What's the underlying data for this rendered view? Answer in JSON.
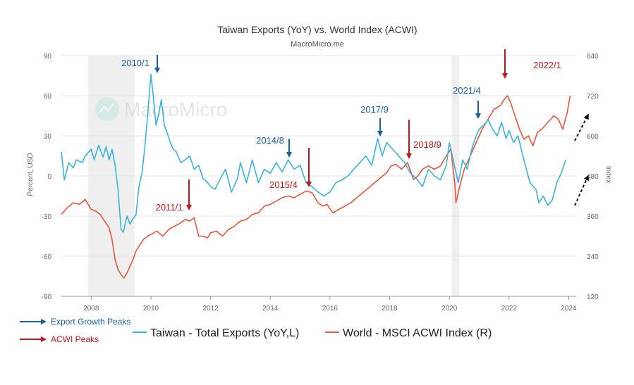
{
  "chart_data": {
    "type": "line",
    "title": "Taiwan Exports (YoY) vs. World Index (ACWI)",
    "subtitle": "MacroMicro.me",
    "watermark": "MacroMicro",
    "ylabel_left": "Percent, USD",
    "ylabel_right": "Index",
    "xlim": [
      2007.0,
      2024.25
    ],
    "ylim_left": [
      -90,
      90
    ],
    "ylim_right": [
      120,
      840
    ],
    "x_ticks": [
      "2008",
      "2010",
      "2012",
      "2014",
      "2016",
      "2018",
      "2020",
      "2022",
      "2024"
    ],
    "y_ticks_left": [
      "90",
      "60",
      "30",
      "0",
      "-30",
      "-60",
      "-90"
    ],
    "y_ticks_right": [
      "840",
      "720",
      "600",
      "480",
      "360",
      "240",
      "120"
    ],
    "grid": "horizontal",
    "recession_bands": [
      [
        2007.9,
        2009.45
      ],
      [
        2020.08,
        2020.33
      ]
    ],
    "legend": {
      "placement": "bottom",
      "items": [
        {
          "label": "Taiwan - Total Exports (YoY,L)",
          "color": "#3bb3d9"
        },
        {
          "label": "World - MSCI ACWI Index (R)",
          "color": "#e8553f"
        }
      ]
    },
    "annotation_legend": [
      {
        "label": "Export Growth Peaks",
        "color": "#1a5f9e"
      },
      {
        "label": "ACWI Peaks",
        "color": "#c0171d"
      }
    ],
    "series": [
      {
        "name": "Taiwan - Total Exports (YoY,L)",
        "axis": "left",
        "color": "#3bb3d9",
        "x": [
          2007.0,
          2007.1,
          2007.25,
          2007.4,
          2007.5,
          2007.7,
          2007.8,
          2008.0,
          2008.1,
          2008.25,
          2008.4,
          2008.5,
          2008.6,
          2008.7,
          2008.8,
          2008.9,
          2009.0,
          2009.08,
          2009.2,
          2009.3,
          2009.4,
          2009.5,
          2009.6,
          2009.7,
          2009.8,
          2009.9,
          2010.0,
          2010.08,
          2010.17,
          2010.25,
          2010.35,
          2010.45,
          2010.55,
          2010.65,
          2010.75,
          2010.85,
          2011.0,
          2011.15,
          2011.3,
          2011.45,
          2011.6,
          2011.75,
          2011.9,
          2012.0,
          2012.15,
          2012.3,
          2012.5,
          2012.7,
          2012.9,
          2013.0,
          2013.2,
          2013.4,
          2013.6,
          2013.8,
          2014.0,
          2014.2,
          2014.4,
          2014.6,
          2014.8,
          2015.0,
          2015.2,
          2015.4,
          2015.6,
          2015.8,
          2016.0,
          2016.2,
          2016.4,
          2016.6,
          2016.8,
          2017.0,
          2017.2,
          2017.4,
          2017.6,
          2017.75,
          2017.9,
          2018.1,
          2018.3,
          2018.5,
          2018.7,
          2018.9,
          2019.1,
          2019.3,
          2019.5,
          2019.7,
          2019.9,
          2020.0,
          2020.15,
          2020.3,
          2020.45,
          2020.6,
          2020.75,
          2020.9,
          2021.0,
          2021.15,
          2021.3,
          2021.45,
          2021.6,
          2021.75,
          2021.9,
          2022.0,
          2022.15,
          2022.3,
          2022.5,
          2022.7,
          2022.9,
          2023.0,
          2023.15,
          2023.3,
          2023.45,
          2023.6,
          2023.75,
          2023.9
        ],
        "y": [
          18,
          -3,
          10,
          6,
          12,
          10,
          15,
          20,
          12,
          23,
          14,
          22,
          12,
          20,
          8,
          -10,
          -40,
          -42,
          -30,
          -36,
          -32,
          -29,
          -8,
          2,
          22,
          48,
          76,
          60,
          38,
          45,
          57,
          38,
          32,
          25,
          20,
          18,
          10,
          12,
          15,
          5,
          8,
          -2,
          -5,
          -8,
          -10,
          -3,
          5,
          -12,
          -2,
          10,
          -5,
          12,
          -5,
          5,
          2,
          10,
          3,
          12,
          5,
          8,
          -5,
          -8,
          -12,
          -15,
          -12,
          -5,
          -3,
          0,
          5,
          10,
          15,
          8,
          28,
          15,
          25,
          20,
          15,
          10,
          2,
          -2,
          -8,
          5,
          0,
          -3,
          8,
          25,
          10,
          -5,
          12,
          5,
          20,
          30,
          35,
          38,
          42,
          35,
          30,
          40,
          28,
          34,
          25,
          30,
          12,
          -5,
          -10,
          -20,
          -15,
          -22,
          -18,
          -5,
          2,
          12
        ]
      },
      {
        "name": "World - MSCI ACWI Index (R)",
        "axis": "right",
        "color": "#e8553f",
        "x": [
          2007.0,
          2007.2,
          2007.4,
          2007.6,
          2007.8,
          2008.0,
          2008.15,
          2008.3,
          2008.45,
          2008.6,
          2008.7,
          2008.8,
          2008.9,
          2009.0,
          2009.1,
          2009.2,
          2009.3,
          2009.4,
          2009.5,
          2009.6,
          2009.75,
          2009.9,
          2010.0,
          2010.2,
          2010.4,
          2010.6,
          2010.8,
          2011.0,
          2011.15,
          2011.3,
          2011.45,
          2011.6,
          2011.75,
          2011.9,
          2012.0,
          2012.2,
          2012.4,
          2012.6,
          2012.8,
          2013.0,
          2013.2,
          2013.4,
          2013.6,
          2013.8,
          2014.0,
          2014.2,
          2014.4,
          2014.6,
          2014.8,
          2015.0,
          2015.2,
          2015.4,
          2015.6,
          2015.75,
          2015.9,
          2016.1,
          2016.3,
          2016.5,
          2016.7,
          2016.9,
          2017.1,
          2017.3,
          2017.5,
          2017.7,
          2017.9,
          2018.05,
          2018.2,
          2018.4,
          2018.6,
          2018.8,
          2018.95,
          2019.1,
          2019.3,
          2019.5,
          2019.7,
          2019.9,
          2020.05,
          2020.18,
          2020.22,
          2020.35,
          2020.5,
          2020.7,
          2020.9,
          2021.1,
          2021.3,
          2021.5,
          2021.7,
          2021.85,
          2021.95,
          2022.05,
          2022.2,
          2022.35,
          2022.5,
          2022.65,
          2022.8,
          2022.95,
          2023.1,
          2023.3,
          2023.5,
          2023.65,
          2023.8,
          2023.95,
          2024.05
        ],
        "y": [
          365,
          385,
          400,
          395,
          410,
          380,
          375,
          365,
          345,
          325,
          290,
          230,
          200,
          185,
          175,
          190,
          210,
          230,
          255,
          270,
          290,
          300,
          305,
          315,
          300,
          320,
          330,
          340,
          350,
          345,
          355,
          300,
          300,
          295,
          310,
          315,
          300,
          320,
          330,
          345,
          350,
          365,
          370,
          390,
          395,
          405,
          415,
          420,
          415,
          425,
          435,
          430,
          400,
          390,
          395,
          370,
          380,
          390,
          400,
          415,
          430,
          445,
          460,
          475,
          490,
          510,
          515,
          500,
          520,
          470,
          480,
          500,
          510,
          500,
          510,
          540,
          560,
          460,
          400,
          450,
          500,
          540,
          580,
          620,
          650,
          680,
          690,
          710,
          720,
          700,
          660,
          620,
          590,
          600,
          570,
          610,
          620,
          640,
          660,
          650,
          620,
          670,
          720
        ]
      }
    ],
    "annotations": [
      {
        "text": "2010/1",
        "series": "exports",
        "x": 2010.08,
        "type": "export-peak"
      },
      {
        "text": "2011/1",
        "series": "acwi",
        "x": 2011.2,
        "type": "acwi-peak"
      },
      {
        "text": "2014/8",
        "series": "exports",
        "x": 2014.55,
        "type": "export-peak"
      },
      {
        "text": "2015/4",
        "series": "acwi",
        "x": 2015.25,
        "type": "acwi-peak"
      },
      {
        "text": "2017/9",
        "series": "exports",
        "x": 2017.7,
        "type": "export-peak"
      },
      {
        "text": "2018/9",
        "series": "acwi",
        "x": 2018.6,
        "type": "acwi-peak"
      },
      {
        "text": "2021/4",
        "series": "exports",
        "x": 2020.9,
        "type": "export-peak"
      },
      {
        "text": "2022/1",
        "series": "acwi",
        "x": 2021.85,
        "type": "acwi-peak"
      }
    ]
  }
}
